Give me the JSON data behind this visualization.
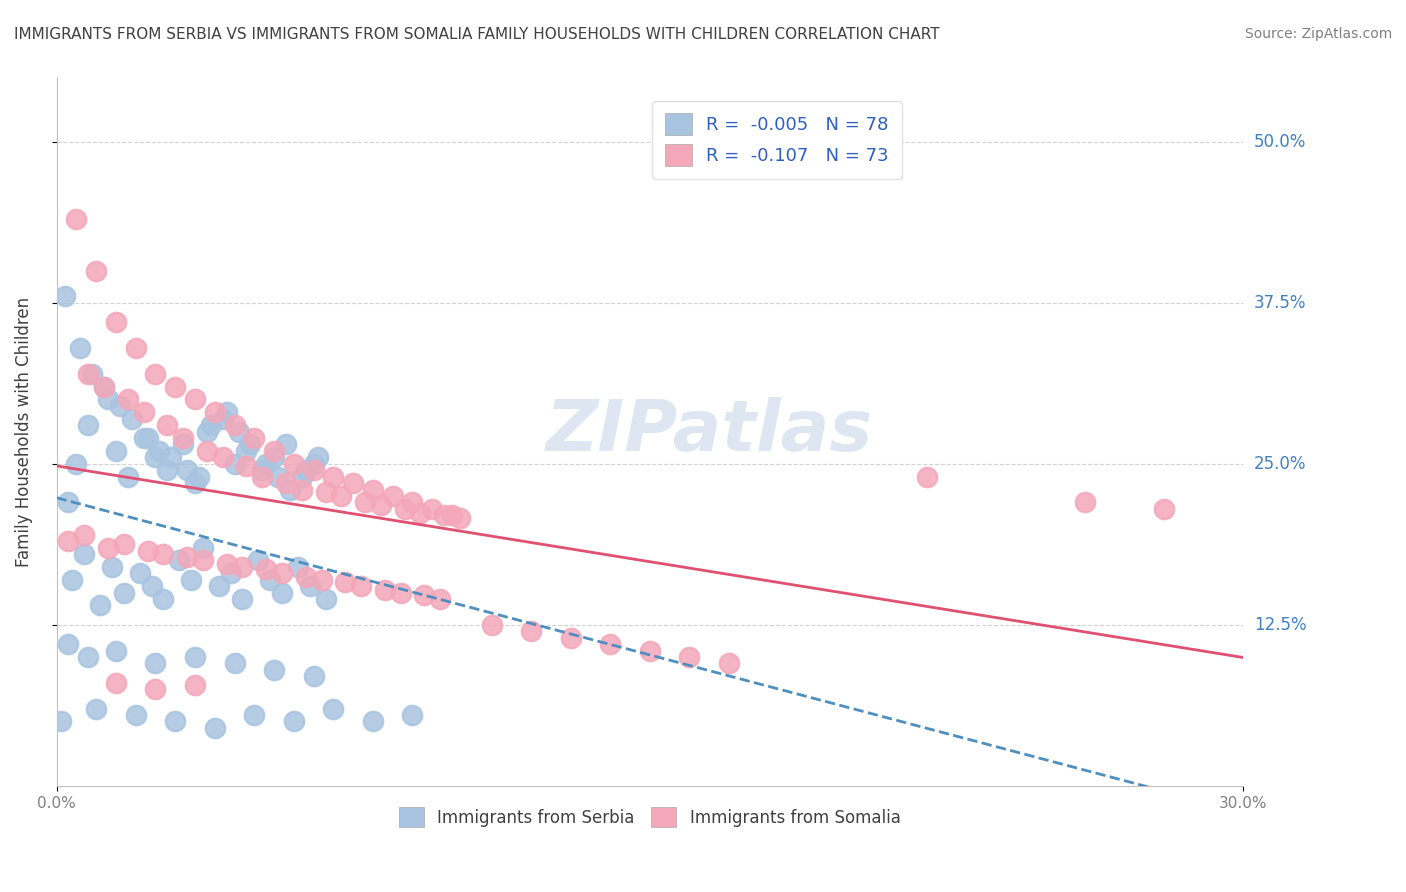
{
  "title": "IMMIGRANTS FROM SERBIA VS IMMIGRANTS FROM SOMALIA FAMILY HOUSEHOLDS WITH CHILDREN CORRELATION CHART",
  "source": "Source: ZipAtlas.com",
  "xlabel_bottom": [
    "Immigrants from Serbia",
    "Immigrants from Somalia"
  ],
  "ylabel": "Family Households with Children",
  "xlim": [
    0.0,
    0.3
  ],
  "ylim": [
    0.0,
    0.55
  ],
  "xtick_labels": [
    "0.0%",
    "30.0%"
  ],
  "ytick_labels": [
    "12.5%",
    "25.0%",
    "37.5%",
    "50.0%"
  ],
  "serbia_R": -0.005,
  "serbia_N": 78,
  "somalia_R": -0.107,
  "somalia_N": 73,
  "serbia_color": "#a8c4e0",
  "somalia_color": "#f4a7b9",
  "serbia_line_color": "#4f8fbf",
  "somalia_line_color": "#e05070",
  "watermark": "ZIPatlas",
  "watermark_color": "#c8d8e8",
  "legend_text_color": "#3060c0",
  "serbia_scatter_x": [
    0.005,
    0.008,
    0.003,
    0.012,
    0.015,
    0.018,
    0.022,
    0.025,
    0.028,
    0.032,
    0.035,
    0.038,
    0.042,
    0.045,
    0.048,
    0.052,
    0.055,
    0.058,
    0.062,
    0.065,
    0.002,
    0.006,
    0.009,
    0.013,
    0.016,
    0.019,
    0.023,
    0.026,
    0.029,
    0.033,
    0.036,
    0.039,
    0.043,
    0.046,
    0.049,
    0.053,
    0.056,
    0.059,
    0.063,
    0.066,
    0.004,
    0.007,
    0.011,
    0.014,
    0.017,
    0.021,
    0.024,
    0.027,
    0.031,
    0.034,
    0.037,
    0.041,
    0.044,
    0.047,
    0.051,
    0.054,
    0.057,
    0.061,
    0.064,
    0.068,
    0.001,
    0.01,
    0.02,
    0.03,
    0.04,
    0.05,
    0.06,
    0.07,
    0.08,
    0.09,
    0.003,
    0.008,
    0.015,
    0.025,
    0.035,
    0.045,
    0.055,
    0.065
  ],
  "serbia_scatter_y": [
    0.25,
    0.28,
    0.22,
    0.31,
    0.26,
    0.24,
    0.27,
    0.255,
    0.245,
    0.265,
    0.235,
    0.275,
    0.285,
    0.25,
    0.26,
    0.245,
    0.255,
    0.265,
    0.24,
    0.25,
    0.38,
    0.34,
    0.32,
    0.3,
    0.295,
    0.285,
    0.27,
    0.26,
    0.255,
    0.245,
    0.24,
    0.28,
    0.29,
    0.275,
    0.265,
    0.25,
    0.24,
    0.23,
    0.245,
    0.255,
    0.16,
    0.18,
    0.14,
    0.17,
    0.15,
    0.165,
    0.155,
    0.145,
    0.175,
    0.16,
    0.185,
    0.155,
    0.165,
    0.145,
    0.175,
    0.16,
    0.15,
    0.17,
    0.155,
    0.145,
    0.05,
    0.06,
    0.055,
    0.05,
    0.045,
    0.055,
    0.05,
    0.06,
    0.05,
    0.055,
    0.11,
    0.1,
    0.105,
    0.095,
    0.1,
    0.095,
    0.09,
    0.085
  ],
  "somalia_scatter_x": [
    0.005,
    0.01,
    0.015,
    0.02,
    0.025,
    0.03,
    0.035,
    0.04,
    0.045,
    0.05,
    0.055,
    0.06,
    0.065,
    0.07,
    0.075,
    0.08,
    0.085,
    0.09,
    0.095,
    0.1,
    0.008,
    0.012,
    0.018,
    0.022,
    0.028,
    0.032,
    0.038,
    0.042,
    0.048,
    0.052,
    0.058,
    0.062,
    0.068,
    0.072,
    0.078,
    0.082,
    0.088,
    0.092,
    0.098,
    0.102,
    0.003,
    0.007,
    0.013,
    0.017,
    0.023,
    0.027,
    0.033,
    0.037,
    0.043,
    0.047,
    0.053,
    0.057,
    0.063,
    0.067,
    0.073,
    0.077,
    0.083,
    0.087,
    0.093,
    0.097,
    0.11,
    0.12,
    0.13,
    0.14,
    0.15,
    0.16,
    0.17,
    0.22,
    0.26,
    0.28,
    0.015,
    0.025,
    0.035
  ],
  "somalia_scatter_y": [
    0.44,
    0.4,
    0.36,
    0.34,
    0.32,
    0.31,
    0.3,
    0.29,
    0.28,
    0.27,
    0.26,
    0.25,
    0.245,
    0.24,
    0.235,
    0.23,
    0.225,
    0.22,
    0.215,
    0.21,
    0.32,
    0.31,
    0.3,
    0.29,
    0.28,
    0.27,
    0.26,
    0.255,
    0.248,
    0.24,
    0.235,
    0.23,
    0.228,
    0.225,
    0.22,
    0.218,
    0.215,
    0.212,
    0.21,
    0.208,
    0.19,
    0.195,
    0.185,
    0.188,
    0.182,
    0.18,
    0.178,
    0.175,
    0.172,
    0.17,
    0.168,
    0.165,
    0.162,
    0.16,
    0.158,
    0.155,
    0.152,
    0.15,
    0.148,
    0.145,
    0.125,
    0.12,
    0.115,
    0.11,
    0.105,
    0.1,
    0.095,
    0.24,
    0.22,
    0.215,
    0.08,
    0.075,
    0.078
  ]
}
